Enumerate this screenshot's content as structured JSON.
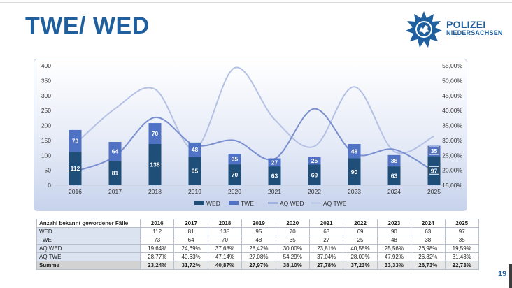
{
  "header": {
    "title": "TWE/ WED"
  },
  "logo": {
    "line1": "POLIZEI",
    "line2": "NIEDERSACHSEN"
  },
  "page_number": "19",
  "colors": {
    "wed": "#1f4e79",
    "twe": "#4f72c4",
    "aq_wed": "#7a8fcf",
    "aq_twe": "#b5c1e4",
    "brand": "#1f5f9e"
  },
  "chart_data": {
    "type": "bar",
    "stacked": true,
    "categories": [
      "2016",
      "2017",
      "2018",
      "2019",
      "2020",
      "2021",
      "2022",
      "2023",
      "2024",
      "2025"
    ],
    "series": [
      {
        "name": "WED",
        "type": "bar",
        "axis": "left",
        "values": [
          112,
          81,
          138,
          95,
          70,
          63,
          69,
          90,
          63,
          97
        ]
      },
      {
        "name": "TWE",
        "type": "bar",
        "axis": "left",
        "values": [
          73,
          64,
          70,
          48,
          35,
          27,
          25,
          48,
          38,
          35
        ]
      },
      {
        "name": "AQ WED",
        "type": "line",
        "axis": "right",
        "values": [
          19.64,
          24.69,
          37.68,
          28.42,
          30.0,
          23.81,
          40.58,
          25.56,
          26.98,
          19.59
        ]
      },
      {
        "name": "AQ TWE",
        "type": "line",
        "axis": "right",
        "values": [
          28.77,
          40.63,
          47.14,
          27.08,
          54.29,
          37.04,
          28.0,
          47.92,
          26.32,
          31.43
        ]
      }
    ],
    "left_axis": {
      "min": 0,
      "max": 400,
      "ticks": [
        "0",
        "50",
        "100",
        "150",
        "200",
        "250",
        "300",
        "350",
        "400"
      ]
    },
    "right_axis": {
      "min": 15,
      "max": 55,
      "ticks": [
        "15,00%",
        "20,00%",
        "25,00%",
        "30,00%",
        "35,00%",
        "40,00%",
        "45,00%",
        "50,00%",
        "55,00%"
      ]
    },
    "legend": {
      "position": "bottom",
      "items": [
        "WED",
        "TWE",
        "AQ WED",
        "AQ TWE"
      ]
    }
  },
  "table": {
    "header_label": "Anzahl bekannt gewordener Fälle",
    "years": [
      "2016",
      "2017",
      "2018",
      "2019",
      "2020",
      "2021",
      "2022",
      "2023",
      "2024",
      "2025"
    ],
    "rows": [
      {
        "label": "WED",
        "values": [
          "112",
          "81",
          "138",
          "95",
          "70",
          "63",
          "69",
          "90",
          "63",
          "97"
        ]
      },
      {
        "label": "TWE",
        "values": [
          "73",
          "64",
          "70",
          "48",
          "35",
          "27",
          "25",
          "48",
          "38",
          "35"
        ]
      },
      {
        "label": "AQ WED",
        "values": [
          "19,64%",
          "24,69%",
          "37,68%",
          "28,42%",
          "30,00%",
          "23,81%",
          "40,58%",
          "25,56%",
          "26,98%",
          "19,59%"
        ]
      },
      {
        "label": "AQ TWE",
        "values": [
          "28,77%",
          "40,63%",
          "47,14%",
          "27,08%",
          "54,29%",
          "37,04%",
          "28,00%",
          "47,92%",
          "26,32%",
          "31,43%"
        ]
      },
      {
        "label": "Summe",
        "values": [
          "23,24%",
          "31,72%",
          "40,87%",
          "27,97%",
          "38,10%",
          "27,78%",
          "37,23%",
          "33,33%",
          "26,73%",
          "22,73%"
        ]
      }
    ]
  }
}
